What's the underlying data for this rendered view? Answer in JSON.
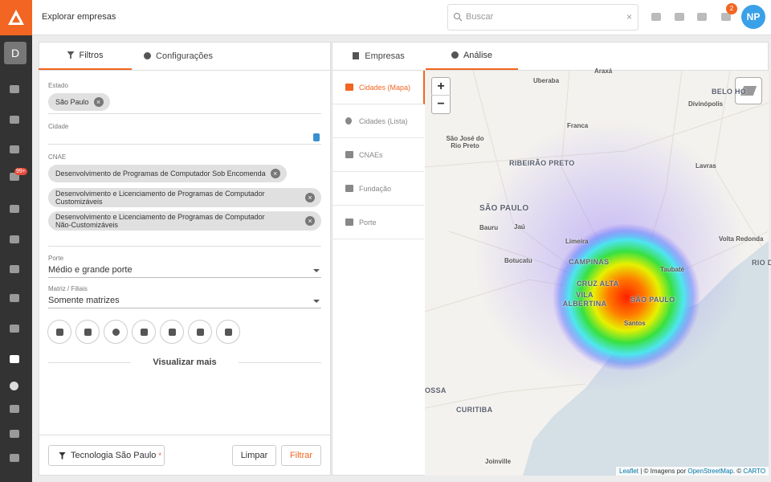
{
  "header": {
    "title": "Explorar empresas",
    "search_placeholder": "Buscar",
    "notification_count": "2",
    "avatar": "NP"
  },
  "sidebar": {
    "workspace": "D",
    "badge": "99+"
  },
  "filters_panel": {
    "tabs": [
      "Filtros",
      "Configurações"
    ],
    "estado": {
      "label": "Estado",
      "chips": [
        "São Paulo"
      ]
    },
    "cidade": {
      "label": "Cidade"
    },
    "cnae": {
      "label": "CNAE",
      "chips": [
        "Desenvolvimento de Programas de Computador Sob Encomenda",
        "Desenvolvimento e Licenciamento de Programas de Computador Customizáveis",
        "Desenvolvimento e Licenciamento de Programas de Computador Não-Customizáveis"
      ]
    },
    "porte": {
      "label": "Porte",
      "value": "Médio e grande porte"
    },
    "matriz": {
      "label": "Matriz / Filiais",
      "value": "Somente matrizes"
    },
    "show_more": "Visualizar mais",
    "footer": {
      "saved_filter": "Tecnologia São Paulo",
      "required_mark": "*",
      "clear": "Limpar",
      "apply": "Filtrar"
    }
  },
  "results_panel": {
    "tabs": [
      "Empresas",
      "Análise"
    ],
    "menu": [
      "Cidades (Mapa)",
      "Cidades (Lista)",
      "CNAEs",
      "Fundação",
      "Porte"
    ]
  },
  "map": {
    "zoom_in": "+",
    "zoom_out": "−",
    "labels": [
      "Uberaba",
      "Araxá",
      "BELO HO",
      "Divinópolis",
      "São José do Rio Preto",
      "Franca",
      "RIBEIRÃO PRETO",
      "Lavras",
      "SÃO PAULO",
      "Bauru",
      "Jaú",
      "Limeira",
      "Volta Redonda",
      "RIO D",
      "Botucatu",
      "CAMPINAS",
      "Taubaté",
      "CRUZ ALTA",
      "VILA ALBERTINA",
      "SÃO PAULO",
      "Santos",
      "OSSA",
      "CURITIBA",
      "Joinville"
    ],
    "attribution": {
      "leaflet": "Leaflet",
      "text1": " | © Imagens por ",
      "osm": "OpenStreetMap",
      "text2": ". © ",
      "carto": "CARTO"
    }
  }
}
